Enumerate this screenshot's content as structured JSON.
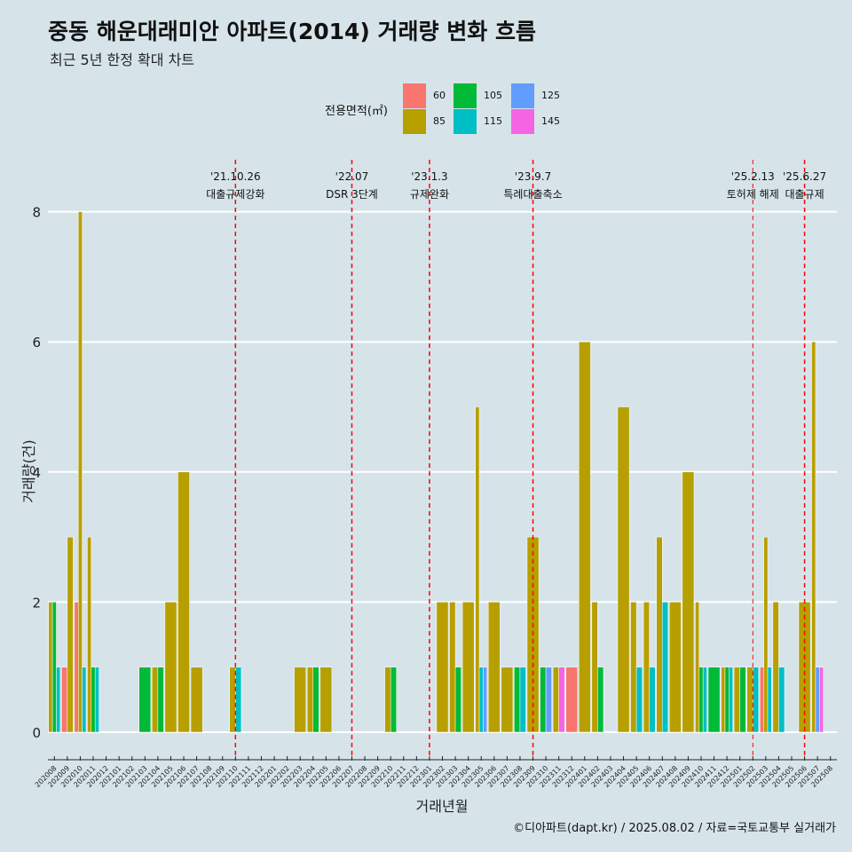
{
  "title": "중동 해운대래미안 아파트(2014) 거래량 변화 흐름",
  "subtitle": "최근 5년 한정 확대 차트",
  "caption": "©디아파트(dapt.kr) / 2025.08.02 / 자료=국토교통부 실거래가",
  "colors": {
    "60": "#f8766d",
    "85": "#b79f00",
    "105": "#00ba38",
    "115": "#00bfc4",
    "125": "#619cff",
    "145": "#f564e3",
    "event_line": "#ff0000",
    "grid": "#ffffff"
  },
  "chart_data": {
    "type": "bar",
    "title": "중동 해운대래미안 아파트(2014) 거래량 변화 흐름",
    "subtitle": "최근 5년 한정 확대 차트",
    "xlabel": "거래년월",
    "ylabel": "거래량(건)",
    "ylim": [
      0,
      8.5
    ],
    "yticks": [
      0,
      2,
      4,
      6,
      8
    ],
    "grid": "horizontal",
    "legend": {
      "title": "전용면적(㎡)",
      "placement": "top",
      "entries": [
        "60",
        "85",
        "105",
        "115",
        "125",
        "145"
      ]
    },
    "categories": [
      "202008",
      "202009",
      "202010",
      "202011",
      "202012",
      "202101",
      "202102",
      "202103",
      "202104",
      "202105",
      "202106",
      "202107",
      "202108",
      "202109",
      "202110",
      "202111",
      "202112",
      "202201",
      "202202",
      "202203",
      "202204",
      "202205",
      "202206",
      "202207",
      "202208",
      "202209",
      "202210",
      "202211",
      "202212",
      "202301",
      "202302",
      "202303",
      "202304",
      "202305",
      "202306",
      "202307",
      "202308",
      "202309",
      "202310",
      "202311",
      "202312",
      "202401",
      "202402",
      "202403",
      "202404",
      "202405",
      "202406",
      "202407",
      "202408",
      "202409",
      "202410",
      "202411",
      "202412",
      "202501",
      "202502",
      "202503",
      "202504",
      "202505",
      "202506",
      "202507",
      "202508"
    ],
    "series": [
      {
        "name": "60",
        "values": [
          0,
          1,
          2,
          0,
          0,
          0,
          0,
          0,
          0,
          0,
          0,
          0,
          0,
          0,
          0,
          0,
          0,
          0,
          0,
          0,
          0,
          0,
          0,
          0,
          0,
          0,
          0,
          0,
          0,
          0,
          0,
          0,
          0,
          0,
          0,
          0,
          0,
          0,
          0,
          0,
          1,
          0,
          0,
          0,
          0,
          0,
          0,
          0,
          0,
          0,
          0,
          0,
          0,
          0,
          0,
          1,
          0,
          0,
          0,
          0,
          0
        ]
      },
      {
        "name": "85",
        "values": [
          2,
          3,
          8,
          3,
          0,
          0,
          0,
          0,
          1,
          2,
          4,
          1,
          0,
          0,
          1,
          0,
          0,
          0,
          0,
          1,
          1,
          1,
          0,
          0,
          0,
          0,
          1,
          0,
          0,
          0,
          2,
          2,
          2,
          5,
          2,
          1,
          0,
          3,
          0,
          1,
          0,
          6,
          2,
          0,
          5,
          2,
          2,
          3,
          2,
          4,
          2,
          0,
          1,
          1,
          1,
          3,
          2,
          0,
          2,
          6,
          0
        ]
      },
      {
        "name": "105",
        "values": [
          2,
          0,
          0,
          1,
          0,
          0,
          0,
          1,
          1,
          0,
          0,
          0,
          0,
          0,
          0,
          0,
          0,
          0,
          0,
          0,
          1,
          0,
          0,
          0,
          0,
          0,
          1,
          0,
          0,
          0,
          0,
          1,
          0,
          0,
          0,
          0,
          1,
          0,
          1,
          0,
          0,
          0,
          1,
          0,
          0,
          0,
          0,
          0,
          0,
          0,
          1,
          1,
          1,
          1,
          0,
          0,
          0,
          0,
          0,
          0,
          0
        ]
      },
      {
        "name": "115",
        "values": [
          1,
          0,
          1,
          1,
          0,
          0,
          0,
          0,
          0,
          0,
          0,
          0,
          0,
          0,
          1,
          0,
          0,
          0,
          0,
          0,
          0,
          0,
          0,
          0,
          0,
          0,
          0,
          0,
          0,
          0,
          0,
          0,
          0,
          1,
          0,
          0,
          1,
          0,
          0,
          0,
          0,
          0,
          0,
          0,
          0,
          1,
          1,
          2,
          0,
          0,
          1,
          0,
          1,
          0,
          1,
          1,
          1,
          0,
          0,
          0,
          0
        ]
      },
      {
        "name": "125",
        "values": [
          0,
          0,
          0,
          0,
          0,
          0,
          0,
          0,
          0,
          0,
          0,
          0,
          0,
          0,
          0,
          0,
          0,
          0,
          0,
          0,
          0,
          0,
          0,
          0,
          0,
          0,
          0,
          0,
          0,
          0,
          0,
          0,
          0,
          1,
          0,
          0,
          0,
          0,
          1,
          0,
          0,
          0,
          0,
          0,
          0,
          0,
          0,
          0,
          0,
          0,
          0,
          0,
          0,
          0,
          0,
          0,
          0,
          0,
          0,
          1,
          0
        ]
      },
      {
        "name": "145",
        "values": [
          0,
          0,
          0,
          0,
          0,
          0,
          0,
          0,
          0,
          0,
          0,
          0,
          0,
          0,
          0,
          0,
          0,
          0,
          0,
          0,
          0,
          0,
          0,
          0,
          0,
          0,
          0,
          0,
          0,
          0,
          0,
          0,
          0,
          0,
          0,
          0,
          0,
          0,
          0,
          1,
          0,
          0,
          0,
          0,
          0,
          0,
          0,
          0,
          0,
          0,
          0,
          0,
          0,
          0,
          0,
          0,
          0,
          0,
          0,
          1,
          0
        ]
      }
    ],
    "annotations": [
      {
        "category": "202110",
        "date": "'21.10.26",
        "label": "대출규제강화"
      },
      {
        "category": "202207",
        "date": "'22.07",
        "label": "DSR 3단계"
      },
      {
        "category": "202301",
        "date": "'23.1.3",
        "label": "규제완화"
      },
      {
        "category": "202309",
        "date": "'23.9.7",
        "label": "특례대출축소"
      },
      {
        "category": "202502",
        "date": "'25.2.13",
        "label": "토허제 해제"
      },
      {
        "category": "202506",
        "date": "'25.6.27",
        "label": "대출규제"
      }
    ]
  }
}
